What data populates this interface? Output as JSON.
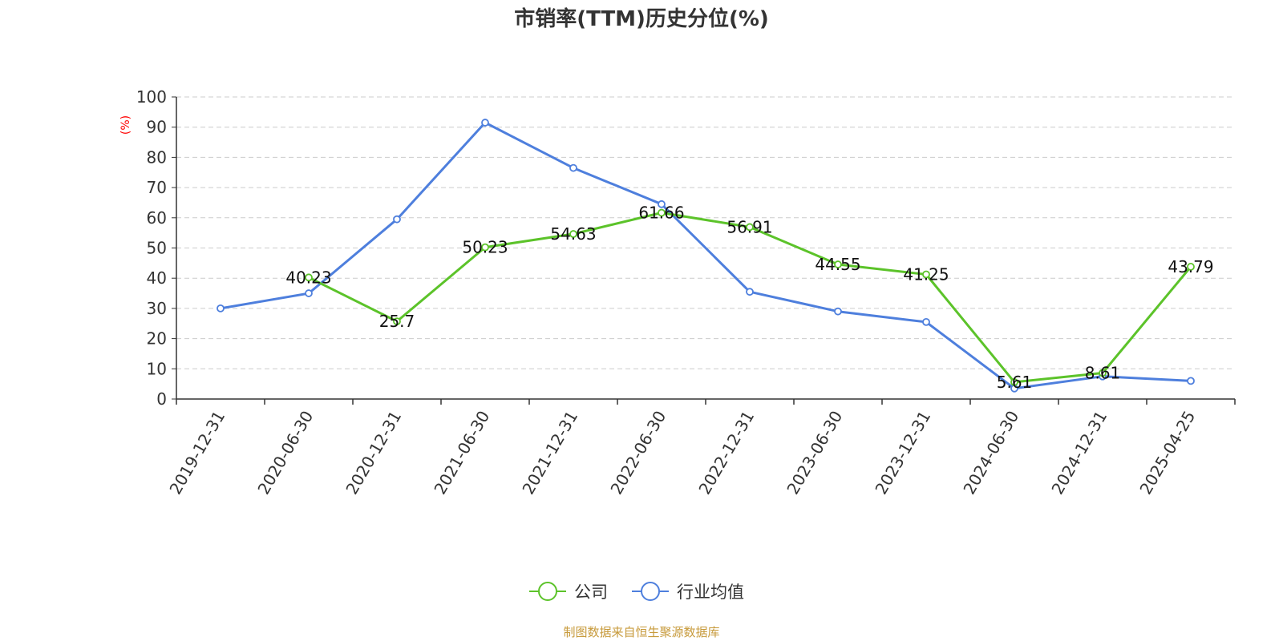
{
  "chart_data": {
    "type": "line",
    "title": "市销率(TTM)历史分位(%)",
    "ylabel": "(%)",
    "xlabel": "",
    "ylim": [
      0,
      100
    ],
    "yticks": [
      0,
      10,
      20,
      30,
      40,
      50,
      60,
      70,
      80,
      90,
      100
    ],
    "grid": true,
    "legend_position": "bottom-center",
    "categories": [
      "2019-12-31",
      "2020-06-30",
      "2020-12-31",
      "2021-06-30",
      "2021-12-31",
      "2022-06-30",
      "2022-12-31",
      "2023-06-30",
      "2023-12-31",
      "2024-06-30",
      "2024-12-31",
      "2025-04-25"
    ],
    "series": [
      {
        "name": "公司",
        "color": "#5cc32a",
        "values": [
          null,
          40.23,
          25.7,
          50.23,
          54.63,
          61.66,
          56.91,
          44.55,
          41.25,
          5.61,
          8.61,
          43.79
        ],
        "labels": [
          "",
          "40.23",
          "25.7",
          "50.23",
          "54.63",
          "61.66",
          "56.91",
          "44.55",
          "41.25",
          "5.61",
          "8.61",
          "43.79"
        ]
      },
      {
        "name": "行业均值",
        "color": "#4e7fdd",
        "values": [
          30.0,
          35.0,
          59.5,
          91.5,
          76.5,
          64.5,
          35.5,
          29.0,
          25.5,
          3.5,
          7.5,
          6.0
        ]
      }
    ],
    "source": "制图数据来自恒生聚源数据库"
  }
}
